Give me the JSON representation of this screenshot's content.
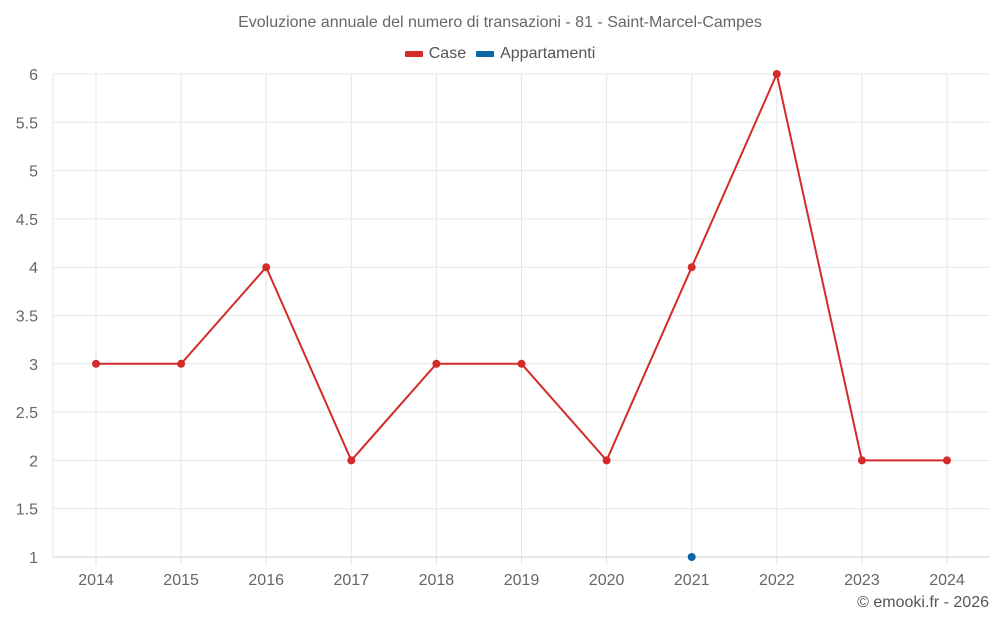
{
  "chart": {
    "title": "Evoluzione annuale del numero di transazioni - 81 - Saint-Marcel-Campes",
    "footer": "© emooki.fr - 2026"
  },
  "legend": [
    {
      "label": "Case",
      "color": "#d42a2a"
    },
    {
      "label": "Appartamenti",
      "color": "#0a67a3"
    }
  ],
  "chart_data": {
    "type": "line",
    "title": "Evoluzione annuale del numero di transazioni - 81 - Saint-Marcel-Campes",
    "xlabel": "",
    "ylabel": "",
    "categories": [
      "2014",
      "2015",
      "2016",
      "2017",
      "2018",
      "2019",
      "2020",
      "2021",
      "2022",
      "2023",
      "2024"
    ],
    "series": [
      {
        "name": "Case",
        "color": "#d42a2a",
        "values": [
          3,
          3,
          4,
          2,
          3,
          3,
          2,
          4,
          6,
          2,
          2
        ]
      },
      {
        "name": "Appartamenti",
        "color": "#0a67a3",
        "values": [
          null,
          null,
          null,
          null,
          null,
          null,
          null,
          1,
          null,
          null,
          null
        ]
      }
    ],
    "ylim": [
      1,
      6
    ],
    "yticks": [
      "1",
      "1.5",
      "2",
      "2.5",
      "3",
      "3.5",
      "4",
      "4.5",
      "5",
      "5.5",
      "6"
    ],
    "grid": true,
    "legend_position": "top"
  }
}
